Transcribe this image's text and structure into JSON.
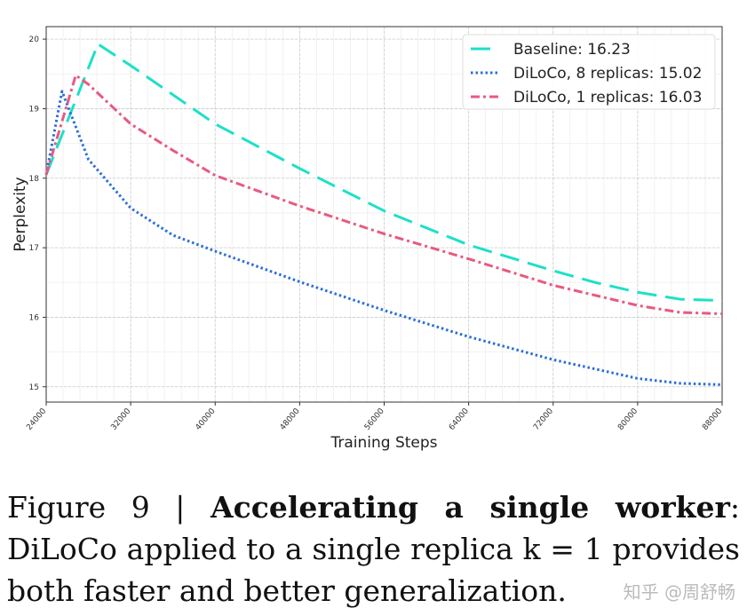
{
  "chart_data": {
    "type": "line",
    "title": "",
    "xlabel": "Training Steps",
    "ylabel": "Perplexity",
    "xlim": [
      24000,
      88000
    ],
    "ylim": [
      14.78,
      20.18
    ],
    "xticks": [
      24000,
      32000,
      40000,
      48000,
      56000,
      64000,
      72000,
      80000,
      88000
    ],
    "yticks": [
      15,
      16,
      17,
      18,
      19,
      20
    ],
    "grid": true,
    "legend_position": "top-right",
    "series": [
      {
        "name": "Baseline: 16.23",
        "color": "#1de0c8",
        "style": "dashed",
        "x": [
          24000,
          28900,
          32000,
          36000,
          40000,
          48000,
          56000,
          64000,
          72000,
          76000,
          80000,
          84000,
          88000
        ],
        "y": [
          18.05,
          19.93,
          19.62,
          19.2,
          18.78,
          18.14,
          17.53,
          17.04,
          16.67,
          16.5,
          16.36,
          16.26,
          16.24
        ]
      },
      {
        "name": "DiLoCo, 8 replicas: 15.02",
        "color": "#2b6fd6",
        "style": "dotted",
        "x": [
          24000,
          25500,
          28000,
          32000,
          36000,
          40000,
          48000,
          56000,
          64000,
          72000,
          80000,
          84000,
          88000
        ],
        "y": [
          18.05,
          19.25,
          18.27,
          17.57,
          17.18,
          16.95,
          16.51,
          16.1,
          15.72,
          15.39,
          15.12,
          15.05,
          15.03
        ]
      },
      {
        "name": "DiLoCo, 1 replicas: 16.03",
        "color": "#e85a80",
        "style": "dashdot",
        "x": [
          24000,
          26800,
          28000,
          32000,
          36000,
          40000,
          48000,
          56000,
          64000,
          72000,
          80000,
          84000,
          88000
        ],
        "y": [
          18.05,
          19.48,
          19.35,
          18.78,
          18.4,
          18.04,
          17.6,
          17.2,
          16.84,
          16.46,
          16.17,
          16.07,
          16.05
        ]
      }
    ]
  },
  "caption": {
    "label": "Figure 9 | ",
    "bold": "Accelerating a single worker",
    "text": ": DiLoCo applied to a single replica k = 1 provides both faster and better generalization."
  },
  "watermark": "知乎 @周舒畅"
}
